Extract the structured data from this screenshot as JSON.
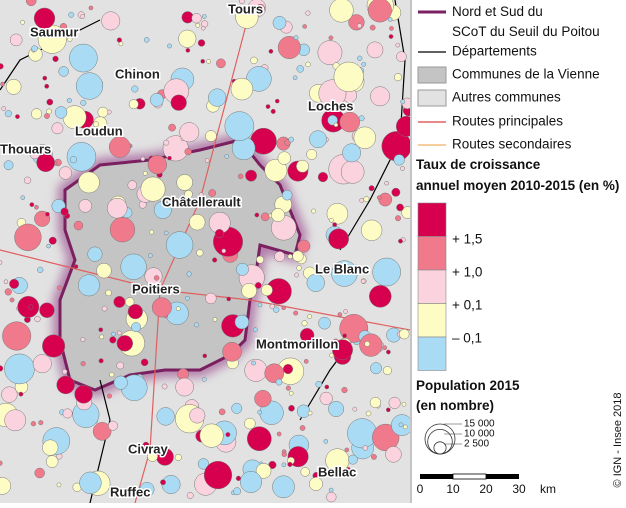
{
  "towns": [
    "Tours",
    "Saumur",
    "Chinon",
    "Loches",
    "Loudun",
    "Thouars",
    "Châtellerault",
    "Le Blanc",
    "Poitiers",
    "Montmorillon",
    "Civray",
    "Bellac",
    "Ruffec"
  ],
  "legend": {
    "lines": [
      "Nord et Sud du SCoT du Seuil du Poitou",
      "Départements",
      "Communes de la Vienne",
      "Autres communes",
      "Routes principales",
      "Routes secondaires"
    ],
    "growth_title": "Taux de croissance annuel moyen 2010-2015 (en %)",
    "growth_breaks": [
      "+ 1,5",
      "+ 1,0",
      "+ 0,1",
      "– 0,1"
    ],
    "population_title": "Population 2015 (en nombre)",
    "population_sizes": [
      "15 000",
      "10 000",
      "2 500"
    ],
    "scale": [
      "0",
      "10",
      "20",
      "30",
      "km"
    ],
    "credit": "© IGN - Insee 2018"
  }
}
